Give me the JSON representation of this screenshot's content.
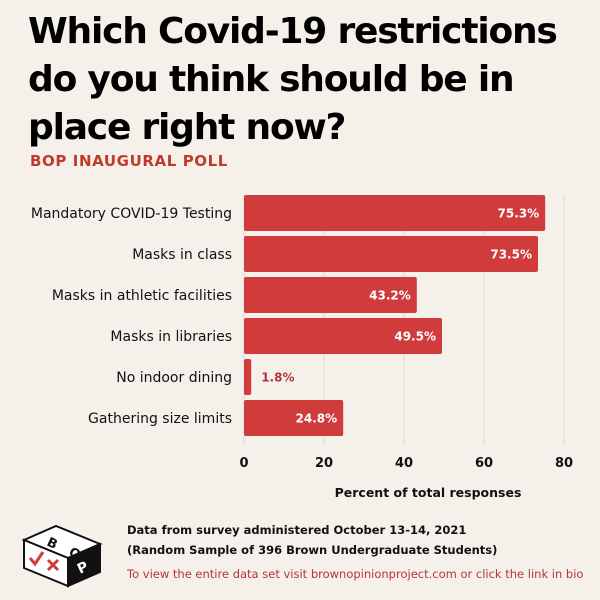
{
  "header": {
    "title": "Which Covid-19 restrictions do you think should be in place right now?",
    "subtitle": "BOP INAUGURAL POLL"
  },
  "colors": {
    "bar": "#d03c3c",
    "label_inside": "#ffffff",
    "label_outside": "#b8323a",
    "accent": "#c0392b",
    "background": "#f5f1ea"
  },
  "chart_data": {
    "type": "bar",
    "orientation": "horizontal",
    "categories": [
      "Mandatory COVID-19 Testing",
      "Masks in class",
      "Masks in athletic facilities",
      "Masks in libraries",
      "No indoor dining",
      "Gathering size limits"
    ],
    "values": [
      75.3,
      73.5,
      43.2,
      49.5,
      1.8,
      24.8
    ],
    "data_labels": [
      "75.3%",
      "73.5%",
      "43.2%",
      "49.5%",
      "1.8%",
      "24.8%"
    ],
    "xlabel": "Percent of total responses",
    "xlim": [
      0,
      80
    ],
    "xticks": [
      0,
      20,
      40,
      60,
      80
    ],
    "grid": true
  },
  "footer": {
    "line1": "Data from survey administered October 13-14, 2021",
    "line2": "(Random Sample of 396 Brown Undergraduate Students)",
    "link_text": "To view the entire data set visit brownopinionproject.com or click the link in bio"
  },
  "logo": {
    "letters": [
      "B",
      "O",
      "P"
    ],
    "marks": [
      "check",
      "cross"
    ]
  }
}
